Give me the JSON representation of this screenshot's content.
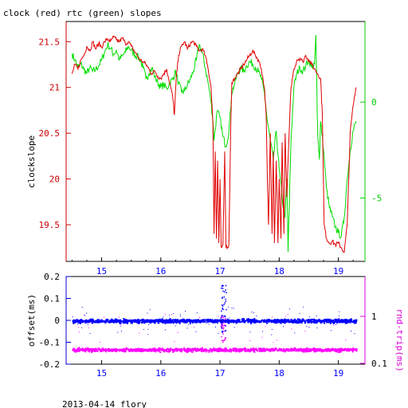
{
  "title": "clock (red) rtc (green) slopes",
  "footer": "2013-04-14 flory",
  "colors": {
    "clock": "#e00000",
    "rtc": "#00dd00",
    "offset": "#0000ff",
    "rtt": "#ff00ff",
    "axis_left_top": "#cc0000",
    "axis_right_top": "#00cc00",
    "axis_left_bottom": "#0000cc",
    "axis_right_bottom": "#dd00dd",
    "frame": "#000000"
  },
  "chart_data": [
    {
      "type": "line",
      "ylabel": "clockslope",
      "y2label": "",
      "xlim": [
        14.4,
        19.45
      ],
      "ylim": [
        19.1,
        21.72
      ],
      "y2lim": [
        -8.3,
        4.2
      ],
      "x_ticks": [
        "15",
        "16",
        "17",
        "18",
        "19"
      ],
      "y_ticks": [
        "19.5",
        "20",
        "20.5",
        "21",
        "21.5"
      ],
      "y2_ticks": [
        "-5",
        "0"
      ],
      "series": [
        {
          "name": "clock",
          "axis": "left",
          "points": [
            [
              14.5,
              21.15
            ],
            [
              14.55,
              21.25
            ],
            [
              14.6,
              21.2
            ],
            [
              14.65,
              21.3
            ],
            [
              14.7,
              21.35
            ],
            [
              14.75,
              21.45
            ],
            [
              14.8,
              21.4
            ],
            [
              14.85,
              21.5
            ],
            [
              14.9,
              21.42
            ],
            [
              14.95,
              21.48
            ],
            [
              15.0,
              21.44
            ],
            [
              15.05,
              21.5
            ],
            [
              15.1,
              21.53
            ],
            [
              15.15,
              21.5
            ],
            [
              15.2,
              21.55
            ],
            [
              15.25,
              21.52
            ],
            [
              15.3,
              21.5
            ],
            [
              15.35,
              21.54
            ],
            [
              15.4,
              21.48
            ],
            [
              15.45,
              21.5
            ],
            [
              15.5,
              21.45
            ],
            [
              15.55,
              21.4
            ],
            [
              15.6,
              21.35
            ],
            [
              15.65,
              21.3
            ],
            [
              15.7,
              21.28
            ],
            [
              15.75,
              21.25
            ],
            [
              15.8,
              21.2
            ],
            [
              15.85,
              21.15
            ],
            [
              15.9,
              21.18
            ],
            [
              15.95,
              21.12
            ],
            [
              16.0,
              21.1
            ],
            [
              16.05,
              21.15
            ],
            [
              16.1,
              21.2
            ],
            [
              16.15,
              21.05
            ],
            [
              16.2,
              20.9
            ],
            [
              16.23,
              20.7
            ],
            [
              16.26,
              21.1
            ],
            [
              16.3,
              21.35
            ],
            [
              16.35,
              21.45
            ],
            [
              16.4,
              21.5
            ],
            [
              16.45,
              21.42
            ],
            [
              16.5,
              21.48
            ],
            [
              16.55,
              21.5
            ],
            [
              16.6,
              21.45
            ],
            [
              16.65,
              21.4
            ],
            [
              16.7,
              21.42
            ],
            [
              16.75,
              21.35
            ],
            [
              16.8,
              21.2
            ],
            [
              16.85,
              21.0
            ],
            [
              16.88,
              20.6
            ],
            [
              16.9,
              19.4
            ],
            [
              16.92,
              20.3
            ],
            [
              16.94,
              19.35
            ],
            [
              16.96,
              20.2
            ],
            [
              16.98,
              19.3
            ],
            [
              17.0,
              20.0
            ],
            [
              17.02,
              19.25
            ],
            [
              17.05,
              19.3
            ],
            [
              17.08,
              20.3
            ],
            [
              17.1,
              19.25
            ],
            [
              17.15,
              19.28
            ],
            [
              17.18,
              20.5
            ],
            [
              17.2,
              21.05
            ],
            [
              17.25,
              21.1
            ],
            [
              17.3,
              21.15
            ],
            [
              17.35,
              21.2
            ],
            [
              17.4,
              21.25
            ],
            [
              17.45,
              21.3
            ],
            [
              17.5,
              21.35
            ],
            [
              17.55,
              21.4
            ],
            [
              17.6,
              21.35
            ],
            [
              17.65,
              21.3
            ],
            [
              17.7,
              21.2
            ],
            [
              17.75,
              21.0
            ],
            [
              17.78,
              20.7
            ],
            [
              17.8,
              20.0
            ],
            [
              17.82,
              19.5
            ],
            [
              17.85,
              20.5
            ],
            [
              17.88,
              19.4
            ],
            [
              17.9,
              20.3
            ],
            [
              17.92,
              19.3
            ],
            [
              17.95,
              20.2
            ],
            [
              17.98,
              19.3
            ],
            [
              18.0,
              20.0
            ],
            [
              18.03,
              19.35
            ],
            [
              18.05,
              20.4
            ],
            [
              18.08,
              19.4
            ],
            [
              18.1,
              20.5
            ],
            [
              18.13,
              19.8
            ],
            [
              18.15,
              20.2
            ],
            [
              18.2,
              21.0
            ],
            [
              18.25,
              21.2
            ],
            [
              18.3,
              21.3
            ],
            [
              18.35,
              21.32
            ],
            [
              18.4,
              21.28
            ],
            [
              18.45,
              21.35
            ],
            [
              18.5,
              21.3
            ],
            [
              18.55,
              21.25
            ],
            [
              18.6,
              21.2
            ],
            [
              18.65,
              21.15
            ],
            [
              18.7,
              21.1
            ],
            [
              18.73,
              20.7
            ],
            [
              18.76,
              19.5
            ],
            [
              18.8,
              19.35
            ],
            [
              18.85,
              19.3
            ],
            [
              18.9,
              19.32
            ],
            [
              18.95,
              19.28
            ],
            [
              19.0,
              19.3
            ],
            [
              19.05,
              19.25
            ],
            [
              19.1,
              19.2
            ],
            [
              19.15,
              19.5
            ],
            [
              19.2,
              20.5
            ],
            [
              19.25,
              20.8
            ],
            [
              19.3,
              21.0
            ]
          ]
        },
        {
          "name": "rtc",
          "axis": "right",
          "points": [
            [
              14.5,
              2.5
            ],
            [
              14.55,
              2.2
            ],
            [
              14.6,
              1.8
            ],
            [
              14.65,
              2.0
            ],
            [
              14.7,
              1.7
            ],
            [
              14.75,
              1.5
            ],
            [
              14.8,
              1.8
            ],
            [
              14.85,
              1.6
            ],
            [
              14.9,
              1.7
            ],
            [
              14.95,
              1.9
            ],
            [
              15.0,
              2.2
            ],
            [
              15.05,
              2.6
            ],
            [
              15.1,
              3.0
            ],
            [
              15.15,
              2.8
            ],
            [
              15.2,
              2.5
            ],
            [
              15.25,
              2.7
            ],
            [
              15.3,
              2.2
            ],
            [
              15.35,
              2.4
            ],
            [
              15.4,
              2.6
            ],
            [
              15.45,
              2.9
            ],
            [
              15.5,
              2.7
            ],
            [
              15.55,
              2.5
            ],
            [
              15.6,
              2.4
            ],
            [
              15.65,
              2.2
            ],
            [
              15.7,
              1.8
            ],
            [
              15.75,
              1.2
            ],
            [
              15.8,
              1.5
            ],
            [
              15.85,
              1.8
            ],
            [
              15.9,
              1.3
            ],
            [
              15.95,
              1.0
            ],
            [
              16.0,
              0.8
            ],
            [
              16.05,
              0.9
            ],
            [
              16.1,
              0.7
            ],
            [
              16.15,
              1.0
            ],
            [
              16.2,
              1.2
            ],
            [
              16.25,
              1.6
            ],
            [
              16.3,
              1.0
            ],
            [
              16.35,
              0.5
            ],
            [
              16.4,
              0.6
            ],
            [
              16.45,
              0.9
            ],
            [
              16.5,
              1.2
            ],
            [
              16.55,
              1.6
            ],
            [
              16.6,
              2.2
            ],
            [
              16.65,
              3.0
            ],
            [
              16.7,
              2.6
            ],
            [
              16.75,
              1.8
            ],
            [
              16.8,
              1.0
            ],
            [
              16.85,
              0.0
            ],
            [
              16.88,
              -1.0
            ],
            [
              16.9,
              -2.0
            ],
            [
              16.95,
              -0.5
            ],
            [
              17.0,
              -0.8
            ],
            [
              17.05,
              -1.8
            ],
            [
              17.1,
              -2.3
            ],
            [
              17.15,
              -1.5
            ],
            [
              17.2,
              0.5
            ],
            [
              17.25,
              1.0
            ],
            [
              17.3,
              1.5
            ],
            [
              17.35,
              1.8
            ],
            [
              17.4,
              1.6
            ],
            [
              17.45,
              1.9
            ],
            [
              17.5,
              2.1
            ],
            [
              17.55,
              2.0
            ],
            [
              17.6,
              1.8
            ],
            [
              17.65,
              1.6
            ],
            [
              17.7,
              1.2
            ],
            [
              17.75,
              0.5
            ],
            [
              17.8,
              -1.0
            ],
            [
              17.85,
              -2.0
            ],
            [
              17.9,
              -3.0
            ],
            [
              17.95,
              -1.5
            ],
            [
              18.0,
              -3.5
            ],
            [
              18.05,
              -5.0
            ],
            [
              18.1,
              -6.0
            ],
            [
              18.13,
              -4.0
            ],
            [
              18.15,
              -7.8
            ],
            [
              18.2,
              -2.0
            ],
            [
              18.25,
              0.8
            ],
            [
              18.3,
              1.5
            ],
            [
              18.35,
              1.8
            ],
            [
              18.4,
              1.6
            ],
            [
              18.45,
              1.9
            ],
            [
              18.5,
              2.2
            ],
            [
              18.55,
              1.8
            ],
            [
              18.6,
              2.0
            ],
            [
              18.62,
              3.5
            ],
            [
              18.65,
              -1.5
            ],
            [
              18.68,
              -3.0
            ],
            [
              18.7,
              -1.0
            ],
            [
              18.75,
              -2.5
            ],
            [
              18.8,
              -4.5
            ],
            [
              18.85,
              -5.5
            ],
            [
              18.9,
              -6.0
            ],
            [
              18.95,
              -6.5
            ],
            [
              19.0,
              -6.8
            ],
            [
              19.05,
              -7.0
            ],
            [
              19.1,
              -6.0
            ],
            [
              19.15,
              -4.0
            ],
            [
              19.2,
              -2.5
            ],
            [
              19.25,
              -1.5
            ],
            [
              19.3,
              -1.0
            ]
          ]
        }
      ]
    },
    {
      "type": "scatter",
      "ylabel": "offset(ms)",
      "y2label": "rnd-trip(ms)",
      "xlim": [
        14.4,
        19.45
      ],
      "ylim": [
        -0.2,
        0.2
      ],
      "x_ticks": [
        "15",
        "16",
        "17",
        "18",
        "19"
      ],
      "y_ticks": [
        "-0.2",
        "-0.1",
        "0",
        "0.1",
        "0.2"
      ],
      "y2_ticks": [
        "0.1",
        "1"
      ],
      "series": [
        {
          "name": "offset",
          "axis": "left",
          "center": 0.0,
          "spread": 0.012,
          "x_range": [
            14.5,
            19.3
          ],
          "burst_x": 17.05,
          "burst_range": [
            -0.07,
            0.17
          ]
        },
        {
          "name": "rnd-trip",
          "axis": "right",
          "center": 0.2,
          "spread": 0.012,
          "x_range": [
            14.5,
            19.3
          ],
          "burst_x": 17.05,
          "burst_range": [
            0.22,
            1.0
          ]
        }
      ]
    }
  ]
}
